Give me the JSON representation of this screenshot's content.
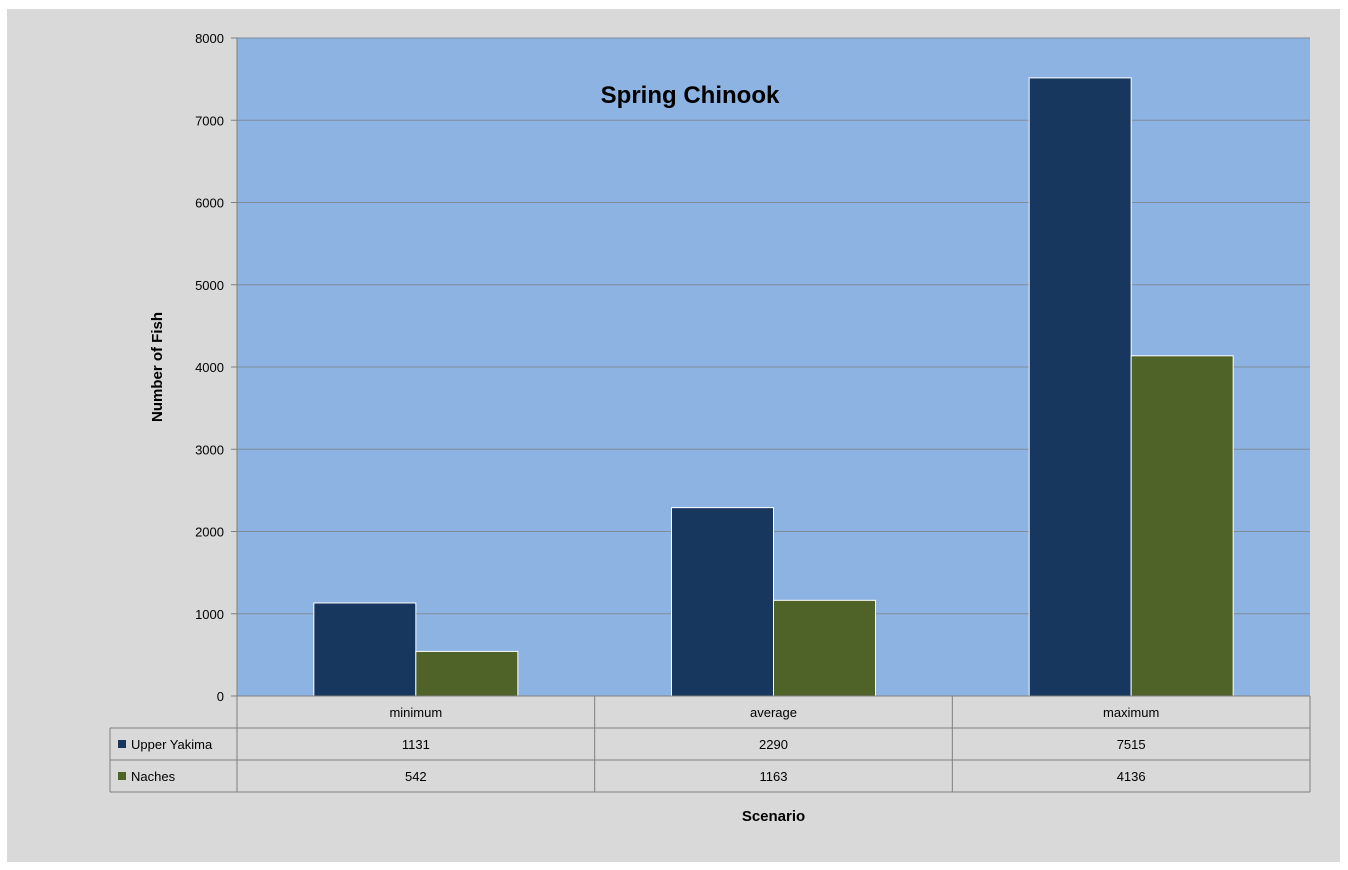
{
  "chart_data": {
    "type": "bar",
    "title": "Spring Chinook",
    "xlabel": "Scenario",
    "ylabel": "Number of Fish",
    "ylim": [
      0,
      8000
    ],
    "yticks": [
      0,
      1000,
      2000,
      3000,
      4000,
      5000,
      6000,
      7000,
      8000
    ],
    "grid": true,
    "legend": "data-table",
    "categories": [
      "minimum",
      "average",
      "maximum"
    ],
    "series": [
      {
        "name": "Upper Yakima",
        "values": [
          1131,
          2290,
          7515
        ],
        "color": "#17375e"
      },
      {
        "name": "Naches",
        "values": [
          542,
          1163,
          4136
        ],
        "color": "#4f6228"
      }
    ],
    "plot_background": "#8db3e2"
  }
}
